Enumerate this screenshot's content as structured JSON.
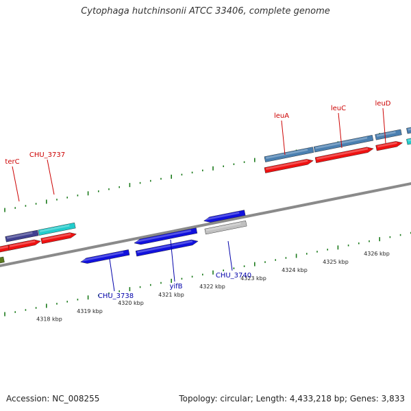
{
  "title": "Cytophaga hutchinsonii ATCC 33406, complete genome",
  "footer": {
    "accession": "Accession: NC_008255",
    "stats": "Topology: circular; Length: 4,433,218 bp; Genes: 3,833"
  },
  "colors": {
    "backbone": "#8a8a8a",
    "ticks": "#1a7a1a",
    "upper_label": "#cc0000",
    "lower_label": "#0000aa",
    "red": "#ee1111",
    "blue": "#1111dd",
    "steelblue": "#4a7fb0",
    "cyan": "#22cccc",
    "navy": "#404090",
    "olive": "#5a7a20",
    "gray": "#c0c0c0"
  },
  "scale": {
    "unit": "kbp",
    "labels": [
      "4318 kbp",
      "4319 kbp",
      "4320 kbp",
      "4321 kbp",
      "4322 kbp",
      "4323 kbp",
      "4324 kbp",
      "4325 kbp",
      "4326 kbp"
    ]
  },
  "genes": {
    "upper": [
      {
        "label": "terC"
      },
      {
        "label": "CHU_3737"
      },
      {
        "label": "leuA"
      },
      {
        "label": "leuC"
      },
      {
        "label": "leuD"
      }
    ],
    "lower": [
      {
        "label": "CHU_3738"
      },
      {
        "label": "yifB"
      },
      {
        "label": "CHU_3740"
      }
    ]
  }
}
